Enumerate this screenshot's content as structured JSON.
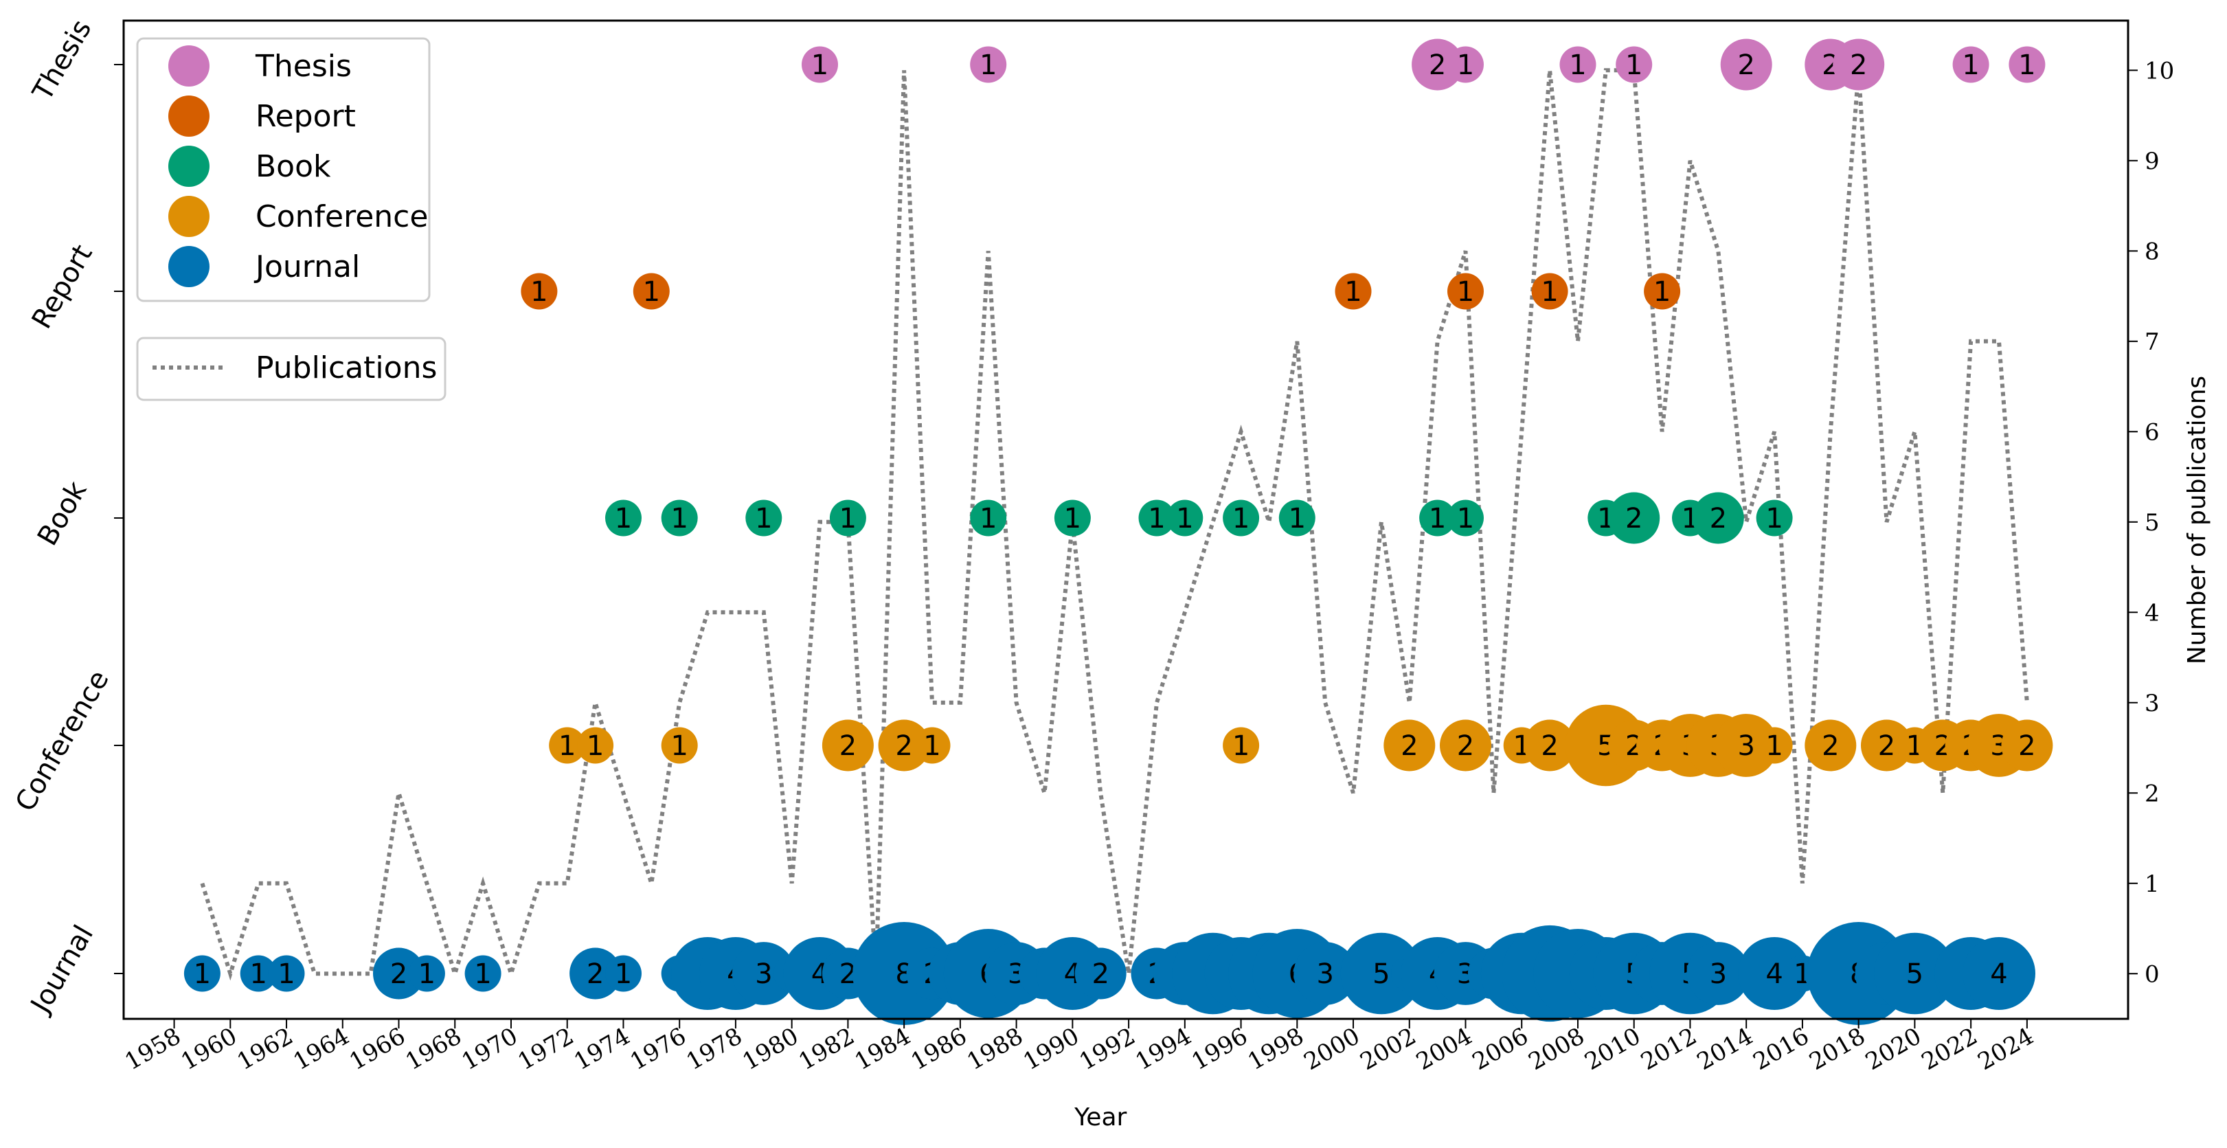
{
  "chart_data": {
    "type": "scatter",
    "title": "",
    "xlabel": "Year",
    "ylabel_right": "Number of publications",
    "x_ticks": [
      1958,
      1960,
      1962,
      1964,
      1966,
      1968,
      1970,
      1972,
      1974,
      1976,
      1978,
      1980,
      1982,
      1984,
      1986,
      1988,
      1990,
      1992,
      1994,
      1996,
      1998,
      2000,
      2002,
      2004,
      2006,
      2008,
      2010,
      2012,
      2014,
      2016,
      2018,
      2020,
      2022,
      2024
    ],
    "xlim": [
      1956.2,
      2027.6
    ],
    "categories": [
      "Journal",
      "Conference",
      "Book",
      "Report",
      "Thesis"
    ],
    "right_yticks": [
      0,
      1,
      2,
      3,
      4,
      5,
      6,
      7,
      8,
      9,
      10
    ],
    "right_ylim": [
      -0.5,
      10.55
    ],
    "colors": {
      "Thesis": "#cc78bc",
      "Report": "#d55e00",
      "Book": "#029e73",
      "Conference": "#de8f05",
      "Journal": "#0173b2",
      "Publications": "#808080"
    },
    "series": [
      {
        "name": "Thesis",
        "points": [
          [
            1981,
            1
          ],
          [
            1987,
            1
          ],
          [
            2003,
            2
          ],
          [
            2004,
            1
          ],
          [
            2008,
            1
          ],
          [
            2010,
            1
          ],
          [
            2014,
            2
          ],
          [
            2017,
            2
          ],
          [
            2018,
            2
          ],
          [
            2022,
            1
          ],
          [
            2024,
            1
          ]
        ]
      },
      {
        "name": "Report",
        "points": [
          [
            1971,
            1
          ],
          [
            1975,
            1
          ],
          [
            2000,
            1
          ],
          [
            2004,
            1
          ],
          [
            2007,
            1
          ],
          [
            2011,
            1
          ]
        ]
      },
      {
        "name": "Book",
        "points": [
          [
            1974,
            1
          ],
          [
            1976,
            1
          ],
          [
            1979,
            1
          ],
          [
            1982,
            1
          ],
          [
            1987,
            1
          ],
          [
            1990,
            1
          ],
          [
            1993,
            1
          ],
          [
            1994,
            1
          ],
          [
            1996,
            1
          ],
          [
            1998,
            1
          ],
          [
            2003,
            1
          ],
          [
            2004,
            1
          ],
          [
            2009,
            1
          ],
          [
            2010,
            2
          ],
          [
            2012,
            1
          ],
          [
            2013,
            2
          ],
          [
            2015,
            1
          ]
        ]
      },
      {
        "name": "Conference",
        "points": [
          [
            1972,
            1
          ],
          [
            1973,
            1
          ],
          [
            1976,
            1
          ],
          [
            1982,
            2
          ],
          [
            1984,
            2
          ],
          [
            1985,
            1
          ],
          [
            1996,
            1
          ],
          [
            2002,
            2
          ],
          [
            2004,
            2
          ],
          [
            2006,
            1
          ],
          [
            2007,
            2
          ],
          [
            2009,
            5
          ],
          [
            2010,
            2
          ],
          [
            2011,
            2
          ],
          [
            2012,
            3
          ],
          [
            2013,
            3
          ],
          [
            2014,
            3
          ],
          [
            2015,
            1
          ],
          [
            2017,
            2
          ],
          [
            2019,
            2
          ],
          [
            2020,
            1
          ],
          [
            2021,
            2
          ],
          [
            2022,
            2
          ],
          [
            2023,
            3
          ],
          [
            2024,
            2
          ]
        ]
      },
      {
        "name": "Journal",
        "points": [
          [
            1959,
            1
          ],
          [
            1961,
            1
          ],
          [
            1962,
            1
          ],
          [
            1966,
            2
          ],
          [
            1967,
            1
          ],
          [
            1969,
            1
          ],
          [
            1973,
            2
          ],
          [
            1974,
            1
          ],
          [
            1976,
            1
          ],
          [
            1977,
            4
          ],
          [
            1978,
            4
          ],
          [
            1979,
            3
          ],
          [
            1980,
            1
          ],
          [
            1981,
            4
          ],
          [
            1982,
            2
          ],
          [
            1984,
            8
          ],
          [
            1985,
            2
          ],
          [
            1986,
            3
          ],
          [
            1987,
            6
          ],
          [
            1988,
            3
          ],
          [
            1989,
            2
          ],
          [
            1990,
            4
          ],
          [
            1991,
            2
          ],
          [
            1993,
            2
          ],
          [
            1994,
            3
          ],
          [
            1995,
            5
          ],
          [
            1996,
            4
          ],
          [
            1997,
            5
          ],
          [
            1998,
            6
          ],
          [
            1999,
            3
          ],
          [
            2000,
            1
          ],
          [
            2001,
            5
          ],
          [
            2002,
            1
          ],
          [
            2003,
            4
          ],
          [
            2004,
            3
          ],
          [
            2005,
            2
          ],
          [
            2006,
            5
          ],
          [
            2007,
            7
          ],
          [
            2008,
            6
          ],
          [
            2009,
            4
          ],
          [
            2010,
            5
          ],
          [
            2011,
            3
          ],
          [
            2012,
            5
          ],
          [
            2013,
            3
          ],
          [
            2015,
            4
          ],
          [
            2016,
            1
          ],
          [
            2017,
            2
          ],
          [
            2018,
            8
          ],
          [
            2019,
            3
          ],
          [
            2020,
            5
          ],
          [
            2022,
            4
          ],
          [
            2023,
            4
          ]
        ]
      },
      {
        "name": "Publications",
        "type": "line",
        "style": "dotted",
        "x": [
          1959,
          1960,
          1961,
          1962,
          1963,
          1964,
          1965,
          1966,
          1967,
          1968,
          1969,
          1970,
          1971,
          1972,
          1973,
          1974,
          1975,
          1976,
          1977,
          1978,
          1979,
          1980,
          1981,
          1982,
          1983,
          1984,
          1985,
          1986,
          1987,
          1988,
          1989,
          1990,
          1991,
          1992,
          1993,
          1994,
          1995,
          1996,
          1997,
          1998,
          1999,
          2000,
          2001,
          2002,
          2003,
          2004,
          2005,
          2006,
          2007,
          2008,
          2009,
          2010,
          2011,
          2012,
          2013,
          2014,
          2015,
          2016,
          2017,
          2018,
          2019,
          2020,
          2021,
          2022,
          2023,
          2024
        ],
        "values": [
          1,
          0,
          1,
          1,
          0,
          0,
          0,
          2,
          1,
          0,
          1,
          0,
          1,
          1,
          3,
          2,
          1,
          3,
          4,
          4,
          4,
          1,
          5,
          5,
          0,
          10,
          3,
          3,
          8,
          3,
          2,
          5,
          2,
          0,
          3,
          4,
          5,
          6,
          5,
          7,
          3,
          2,
          5,
          3,
          7,
          8,
          2,
          6,
          10,
          7,
          10,
          10,
          6,
          9,
          8,
          5,
          6,
          1,
          6,
          10,
          5,
          6,
          2,
          7,
          7,
          3
        ]
      }
    ],
    "legend": [
      {
        "label": "Thesis",
        "kind": "marker"
      },
      {
        "label": "Report",
        "kind": "marker"
      },
      {
        "label": "Book",
        "kind": "marker"
      },
      {
        "label": "Conference",
        "kind": "marker"
      },
      {
        "label": "Journal",
        "kind": "marker"
      },
      {
        "label": "Publications",
        "kind": "line"
      }
    ],
    "legend_placement": "top-left"
  }
}
